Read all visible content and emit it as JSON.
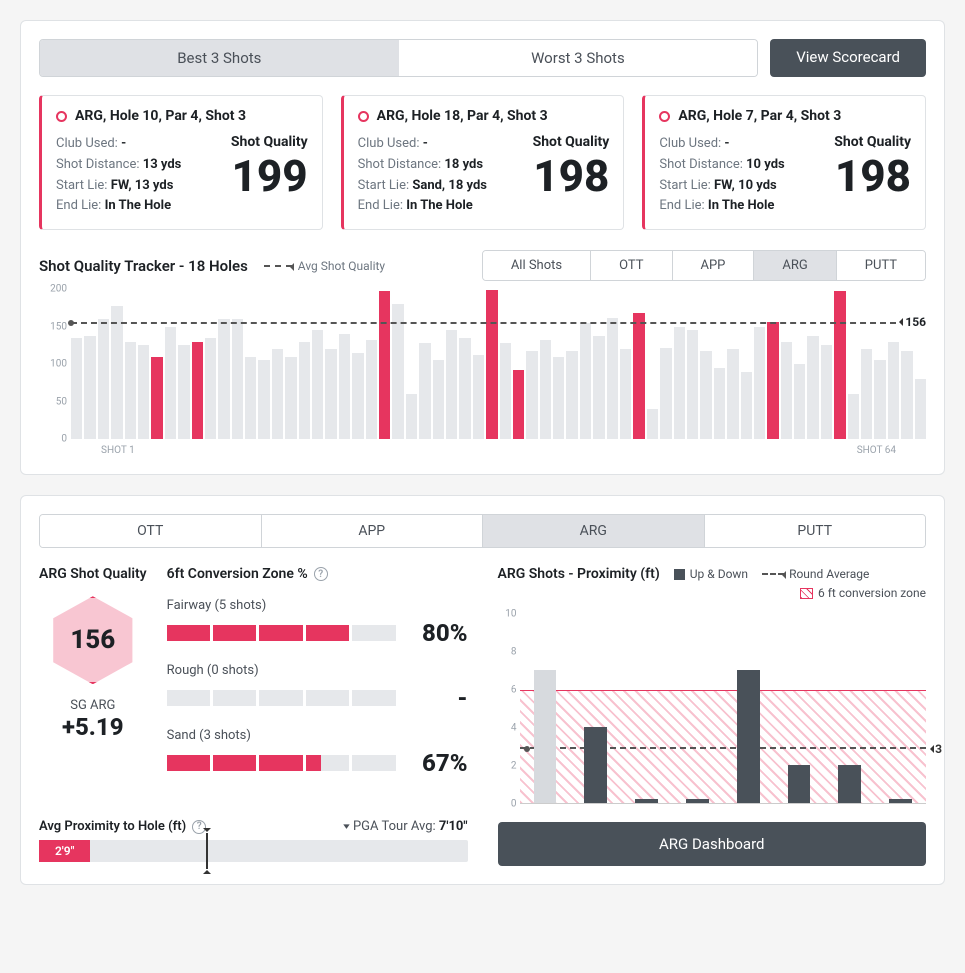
{
  "colors": {
    "accent": "#e6355f",
    "dark": "#495159",
    "gray_bar": "#e6e8eb",
    "light_gray_bar": "#d7dade",
    "text_muted": "#6d7680"
  },
  "top_tabs": {
    "best": "Best 3 Shots",
    "worst": "Worst 3 Shots",
    "active": "best"
  },
  "view_scorecard": "View Scorecard",
  "shot_cards": [
    {
      "title": "ARG, Hole 10, Par 4, Shot 3",
      "club_label": "Club Used:",
      "club": "-",
      "dist_label": "Shot Distance:",
      "dist": "13 yds",
      "start_label": "Start Lie:",
      "start": "FW, 13 yds",
      "end_label": "End Lie:",
      "end": "In The Hole",
      "sq_label": "Shot Quality",
      "sq": "199"
    },
    {
      "title": "ARG, Hole 18, Par 4, Shot 3",
      "club_label": "Club Used:",
      "club": "-",
      "dist_label": "Shot Distance:",
      "dist": "18 yds",
      "start_label": "Start Lie:",
      "start": "Sand, 18 yds",
      "end_label": "End Lie:",
      "end": "In The Hole",
      "sq_label": "Shot Quality",
      "sq": "198"
    },
    {
      "title": "ARG, Hole 7, Par 4, Shot 3",
      "club_label": "Club Used:",
      "club": "-",
      "dist_label": "Shot Distance:",
      "dist": "10 yds",
      "start_label": "Start Lie:",
      "start": "FW, 10 yds",
      "end_label": "End Lie:",
      "end": "In The Hole",
      "sq_label": "Shot Quality",
      "sq": "198"
    }
  ],
  "tracker": {
    "title": "Shot Quality Tracker - 18 Holes",
    "avg_label": "Avg Shot Quality",
    "avg_value": 156,
    "y_max": 200,
    "y_ticks": [
      0,
      50,
      100,
      150,
      200
    ],
    "x_first": "SHOT 1",
    "x_last": "SHOT 64",
    "filter_tabs": [
      "All Shots",
      "OTT",
      "APP",
      "ARG",
      "PUTT"
    ],
    "filter_active": "ARG",
    "bars": [
      {
        "v": 135,
        "hl": false
      },
      {
        "v": 138,
        "hl": false
      },
      {
        "v": 160,
        "hl": false
      },
      {
        "v": 178,
        "hl": false
      },
      {
        "v": 130,
        "hl": false
      },
      {
        "v": 125,
        "hl": false
      },
      {
        "v": 110,
        "hl": true
      },
      {
        "v": 150,
        "hl": false
      },
      {
        "v": 125,
        "hl": false
      },
      {
        "v": 130,
        "hl": true
      },
      {
        "v": 135,
        "hl": false
      },
      {
        "v": 160,
        "hl": false
      },
      {
        "v": 160,
        "hl": false
      },
      {
        "v": 110,
        "hl": false
      },
      {
        "v": 105,
        "hl": false
      },
      {
        "v": 120,
        "hl": false
      },
      {
        "v": 110,
        "hl": false
      },
      {
        "v": 130,
        "hl": false
      },
      {
        "v": 145,
        "hl": false
      },
      {
        "v": 120,
        "hl": false
      },
      {
        "v": 140,
        "hl": false
      },
      {
        "v": 115,
        "hl": false
      },
      {
        "v": 132,
        "hl": false
      },
      {
        "v": 198,
        "hl": true
      },
      {
        "v": 180,
        "hl": false
      },
      {
        "v": 60,
        "hl": false
      },
      {
        "v": 128,
        "hl": false
      },
      {
        "v": 105,
        "hl": false
      },
      {
        "v": 145,
        "hl": false
      },
      {
        "v": 135,
        "hl": false
      },
      {
        "v": 112,
        "hl": false
      },
      {
        "v": 199,
        "hl": true
      },
      {
        "v": 128,
        "hl": false
      },
      {
        "v": 92,
        "hl": true
      },
      {
        "v": 118,
        "hl": false
      },
      {
        "v": 132,
        "hl": false
      },
      {
        "v": 110,
        "hl": false
      },
      {
        "v": 118,
        "hl": false
      },
      {
        "v": 155,
        "hl": false
      },
      {
        "v": 138,
        "hl": false
      },
      {
        "v": 162,
        "hl": false
      },
      {
        "v": 120,
        "hl": false
      },
      {
        "v": 168,
        "hl": true
      },
      {
        "v": 40,
        "hl": false
      },
      {
        "v": 122,
        "hl": false
      },
      {
        "v": 150,
        "hl": false
      },
      {
        "v": 145,
        "hl": false
      },
      {
        "v": 118,
        "hl": false
      },
      {
        "v": 95,
        "hl": false
      },
      {
        "v": 120,
        "hl": false
      },
      {
        "v": 90,
        "hl": false
      },
      {
        "v": 150,
        "hl": false
      },
      {
        "v": 156,
        "hl": true
      },
      {
        "v": 130,
        "hl": false
      },
      {
        "v": 100,
        "hl": false
      },
      {
        "v": 138,
        "hl": false
      },
      {
        "v": 125,
        "hl": false
      },
      {
        "v": 198,
        "hl": true
      },
      {
        "v": 60,
        "hl": false
      },
      {
        "v": 120,
        "hl": false
      },
      {
        "v": 105,
        "hl": false
      },
      {
        "v": 130,
        "hl": false
      },
      {
        "v": 118,
        "hl": false
      },
      {
        "v": 80,
        "hl": false
      }
    ]
  },
  "bottom_tabs": {
    "items": [
      "OTT",
      "APP",
      "ARG",
      "PUTT"
    ],
    "active": "ARG"
  },
  "arg_sq": {
    "title": "ARG Shot Quality",
    "hex_value": "156",
    "sg_label": "SG ARG",
    "sg_value": "+5.19"
  },
  "conv": {
    "title": "6ft Conversion Zone %",
    "items": [
      {
        "label": "Fairway (5 shots)",
        "fill": 4,
        "pct": "80%"
      },
      {
        "label": "Rough (0 shots)",
        "fill": 0,
        "pct": "-"
      },
      {
        "label": "Sand (3 shots)",
        "fill": 3.35,
        "pct": "67%"
      }
    ]
  },
  "proximity": {
    "label": "Avg Proximity to Hole (ft)",
    "pga_label": "PGA Tour Avg:",
    "pga_value": "7'10\"",
    "value": "2'9\"",
    "fill_pct": 12,
    "marker_pct": 39
  },
  "prox_chart": {
    "title": "ARG Shots - Proximity (ft)",
    "legend_updown": "Up & Down",
    "legend_roundavg": "Round Average",
    "legend_zone": "6 ft conversion zone",
    "y_max": 10,
    "y_ticks": [
      0,
      2,
      4,
      6,
      8,
      10
    ],
    "zone_top_val": 6,
    "round_avg": 3,
    "bars": [
      {
        "v": 7,
        "style": "lgray"
      },
      {
        "v": 4,
        "style": "dark"
      },
      {
        "v": 0.2,
        "style": "tiny"
      },
      {
        "v": 0.2,
        "style": "tiny"
      },
      {
        "v": 7,
        "style": "dark"
      },
      {
        "v": 2,
        "style": "dark"
      },
      {
        "v": 2,
        "style": "dark"
      },
      {
        "v": 0.2,
        "style": "tiny"
      }
    ]
  },
  "dash_btn": "ARG Dashboard"
}
